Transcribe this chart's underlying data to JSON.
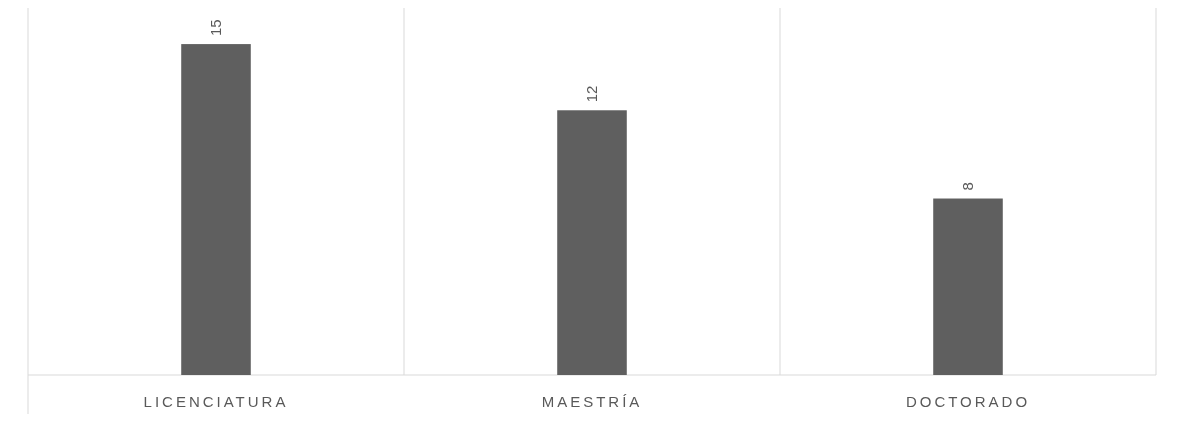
{
  "chart_data": {
    "type": "bar",
    "categories": [
      "LICENCIATURA",
      "MAESTRÍA",
      "DOCTORADO"
    ],
    "values": [
      15,
      12,
      8
    ],
    "color": "#5f5f5f",
    "data_labels": true
  }
}
